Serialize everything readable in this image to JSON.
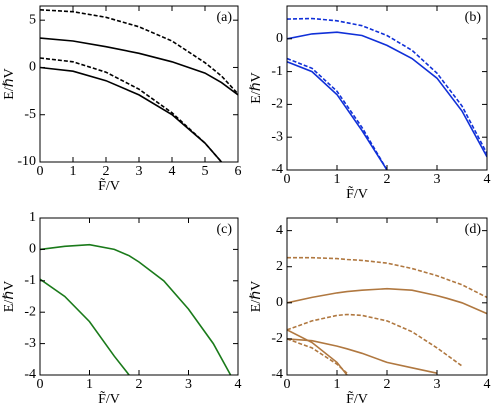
{
  "chart_data": [
    {
      "type": "line",
      "panel_label": "(a)",
      "x_label": "F̃/V",
      "y_label": "E/ℏV",
      "x": [
        0,
        1,
        2,
        3,
        4,
        5,
        5.5,
        6
      ],
      "xlim": [
        0,
        6
      ],
      "xticks": [
        0,
        1,
        2,
        3,
        4,
        5,
        6
      ],
      "ylim": [
        -10,
        6.5
      ],
      "yticks": [
        5,
        0,
        -5,
        -10
      ],
      "series": [
        {
          "color": "#000000",
          "style": "dashed",
          "values": [
            6.1,
            5.9,
            5.3,
            4.3,
            2.8,
            0.5,
            -0.9,
            -2.8
          ]
        },
        {
          "color": "#000000",
          "style": "solid",
          "values": [
            3.1,
            2.8,
            2.2,
            1.5,
            0.6,
            -0.6,
            -1.6,
            -2.9
          ]
        },
        {
          "color": "#000000",
          "style": "dashed",
          "values": [
            1.0,
            0.6,
            -0.5,
            -2.3,
            -4.8,
            -8.0,
            -10,
            null
          ]
        },
        {
          "color": "#000000",
          "style": "solid",
          "values": [
            0,
            -0.4,
            -1.4,
            -2.9,
            -5.0,
            -8.0,
            -10,
            null
          ]
        }
      ]
    },
    {
      "type": "line",
      "panel_label": "(b)",
      "x_label": "F̃/V",
      "y_label": "E/ℏV",
      "x": [
        0,
        0.5,
        1,
        1.5,
        2,
        2.5,
        3,
        3.5,
        4
      ],
      "xlim": [
        0,
        4
      ],
      "xticks": [
        0,
        1,
        2,
        3,
        4
      ],
      "ylim": [
        -4,
        1
      ],
      "yticks": [
        0,
        -1,
        -2,
        -3,
        -4
      ],
      "series": [
        {
          "color": "#1030d8",
          "style": "dashed",
          "values": [
            0.6,
            0.62,
            0.55,
            0.4,
            0.1,
            -0.35,
            -1.05,
            -2.05,
            -3.5
          ]
        },
        {
          "color": "#1030d8",
          "style": "solid",
          "values": [
            0,
            0.15,
            0.2,
            0.1,
            -0.2,
            -0.6,
            -1.2,
            -2.2,
            -3.6
          ]
        },
        {
          "color": "#1030d8",
          "style": "dashed",
          "values": [
            -0.6,
            -0.9,
            -1.6,
            -2.7,
            -4,
            null,
            null,
            null,
            null
          ]
        },
        {
          "color": "#1030d8",
          "style": "solid",
          "values": [
            -0.7,
            -1.0,
            -1.7,
            -2.8,
            -4,
            null,
            null,
            null,
            null
          ]
        }
      ]
    },
    {
      "type": "line",
      "panel_label": "(c)",
      "x_label": "F̃/V",
      "y_label": "E/ℏV",
      "x": [
        0,
        0.5,
        1,
        1.5,
        1.8,
        2,
        2.5,
        3,
        3.5,
        3.85
      ],
      "xlim": [
        0,
        4
      ],
      "xticks": [
        0,
        1,
        2,
        3,
        4
      ],
      "ylim": [
        -4,
        1
      ],
      "yticks": [
        1,
        0,
        -1,
        -2,
        -3,
        -4
      ],
      "series": [
        {
          "color": "#1a7a1a",
          "style": "solid",
          "values": [
            0,
            0.1,
            0.15,
            0,
            -0.2,
            -0.4,
            -1.0,
            -1.9,
            -3.0,
            -4
          ]
        },
        {
          "color": "#1a7a1a",
          "style": "solid",
          "values": [
            -0.95,
            -1.5,
            -2.3,
            -3.4,
            -4,
            null,
            null,
            null,
            null,
            null
          ]
        }
      ]
    },
    {
      "type": "line",
      "panel_label": "(d)",
      "x_label": "F̃/V",
      "y_label": "E/ℏV",
      "x": [
        0,
        0.5,
        1,
        1.2,
        1.5,
        2,
        2.5,
        3,
        3.2,
        3.5,
        4
      ],
      "xlim": [
        0,
        4
      ],
      "xticks": [
        0,
        1,
        2,
        3,
        4
      ],
      "ylim": [
        -4,
        4.7
      ],
      "yticks": [
        4,
        2,
        0,
        -2,
        -4
      ],
      "series": [
        {
          "color": "#b07840",
          "style": "dashed",
          "values": [
            2.5,
            2.5,
            2.45,
            2.4,
            2.35,
            2.2,
            1.9,
            1.5,
            1.3,
            1.0,
            0.3
          ]
        },
        {
          "color": "#b07840",
          "style": "solid",
          "values": [
            0,
            0.3,
            0.55,
            0.62,
            0.7,
            0.78,
            0.7,
            0.4,
            0.25,
            0,
            -0.6
          ]
        },
        {
          "color": "#b07840",
          "style": "dashed",
          "values": [
            -1.5,
            -1.0,
            -0.7,
            -0.65,
            -0.7,
            -1.0,
            -1.6,
            -2.5,
            -2.9,
            -3.5,
            null
          ]
        },
        {
          "color": "#b07840",
          "style": "solid",
          "values": [
            -1.5,
            -2.2,
            -3.3,
            -4,
            null,
            null,
            null,
            null,
            null,
            null,
            null
          ]
        },
        {
          "color": "#b07840",
          "style": "dashed",
          "values": [
            -2,
            -2.5,
            -3.4,
            -3.9,
            null,
            null,
            null,
            null,
            null,
            null,
            null
          ]
        },
        {
          "color": "#b07840",
          "style": "solid",
          "values": [
            -2,
            -2.1,
            -2.4,
            -2.55,
            -2.8,
            -3.3,
            -3.6,
            -3.9,
            null,
            null,
            null
          ]
        }
      ]
    }
  ]
}
